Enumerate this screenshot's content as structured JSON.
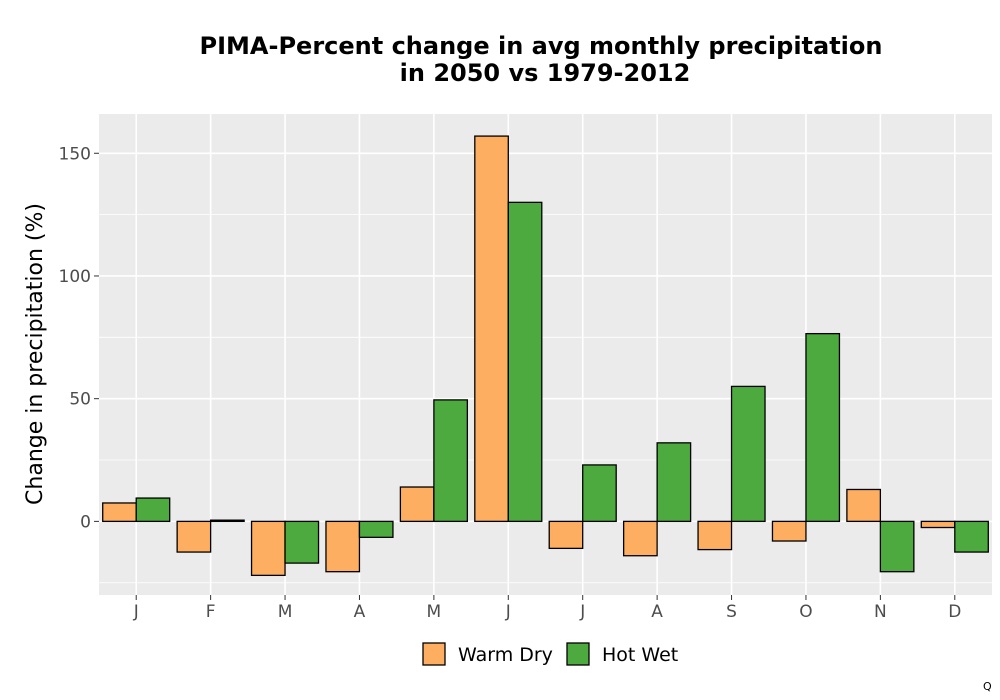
{
  "chart_data": {
    "type": "bar",
    "title_lines": [
      "PIMA-Percent change in avg monthly precipitation",
      "in 2050 vs 1979-2012"
    ],
    "xlabel": "",
    "ylabel": "Change in precipitation (%)",
    "categories": [
      "J",
      "F",
      "M",
      "A",
      "M",
      "J",
      "J",
      "A",
      "S",
      "O",
      "N",
      "D"
    ],
    "series": [
      {
        "name": "Warm Dry",
        "color": "#fdae61",
        "values": [
          7.5,
          -12.5,
          -22,
          -20.5,
          14,
          157,
          -11,
          -14,
          -11.5,
          -8,
          13,
          -2.5
        ]
      },
      {
        "name": "Hot Wet",
        "color": "#4daa3f",
        "values": [
          9.5,
          0.5,
          -17,
          -6.5,
          49.5,
          130,
          23,
          32,
          55,
          76.5,
          -20.5,
          -12.5
        ]
      }
    ],
    "ylim": [
      -30,
      166
    ],
    "yticks": [
      0,
      50,
      100,
      150
    ],
    "grid": true,
    "legend": "bottom",
    "panel_background": "#ebebeb",
    "grid_color": "#ffffff"
  },
  "corner_mark": "Q"
}
